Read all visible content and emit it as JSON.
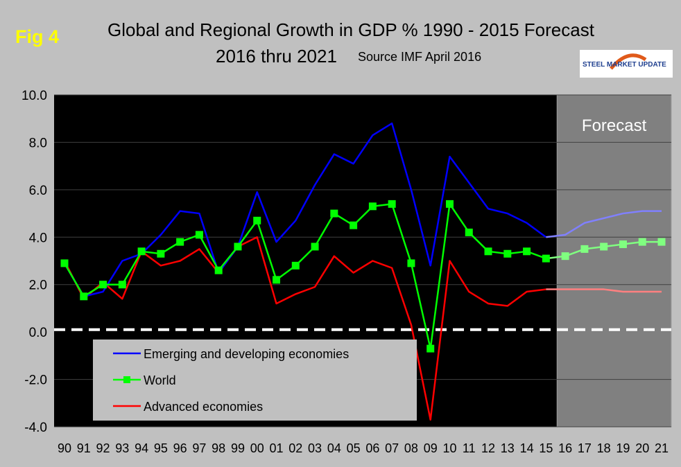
{
  "header": {
    "fig_label": "Fig 4",
    "title_line1": "Global and Regional Growth in GDP % 1990 - 2015 Forecast",
    "title_line2": "2016 thru 2021",
    "source": "Source IMF April 2016",
    "logo_text": "STEEL MARKET UPDATE"
  },
  "colors": {
    "plot_background": "#000000",
    "forecast_background": "#808080",
    "emerging": "#0000ff",
    "emerging_forecast": "#8080ff",
    "world": "#00ff00",
    "world_forecast": "#80ff80",
    "advanced": "#ff0000",
    "advanced_forecast": "#ff8080",
    "zero_line": "#ffffff"
  },
  "chart_data": {
    "type": "line",
    "categories": [
      "90",
      "91",
      "92",
      "93",
      "94",
      "95",
      "96",
      "97",
      "98",
      "99",
      "00",
      "01",
      "02",
      "03",
      "04",
      "05",
      "06",
      "07",
      "08",
      "09",
      "10",
      "11",
      "12",
      "13",
      "14",
      "15",
      "16",
      "17",
      "18",
      "19",
      "20",
      "21"
    ],
    "y_ticks": [
      "10.0",
      "8.0",
      "6.0",
      "4.0",
      "2.0",
      "0.0",
      "-2.0",
      "-4.0"
    ],
    "ylim": [
      -4,
      10
    ],
    "forecast_label": "Forecast",
    "forecast_start_category": "16",
    "legend_position": "bottom-left",
    "series": [
      {
        "name": "Emerging and developing economies",
        "marker": "none",
        "values": [
          2.9,
          1.5,
          1.7,
          3.0,
          3.3,
          4.1,
          5.1,
          5.0,
          2.5,
          3.6,
          5.9,
          3.8,
          4.7,
          6.2,
          7.5,
          7.1,
          8.3,
          8.8,
          6.0,
          2.8,
          7.4,
          6.3,
          5.2,
          5.0,
          4.6,
          4.0,
          4.1,
          4.6,
          4.8,
          5.0,
          5.1,
          5.1
        ]
      },
      {
        "name": "World",
        "marker": "square",
        "values": [
          2.9,
          1.5,
          2.0,
          2.0,
          3.4,
          3.3,
          3.8,
          4.1,
          2.6,
          3.6,
          4.7,
          2.2,
          2.8,
          3.6,
          5.0,
          4.5,
          5.3,
          5.4,
          2.9,
          -0.7,
          5.4,
          4.2,
          3.4,
          3.3,
          3.4,
          3.1,
          3.2,
          3.5,
          3.6,
          3.7,
          3.8,
          3.8
        ]
      },
      {
        "name": "Advanced economies",
        "marker": "none",
        "values": [
          3.0,
          1.4,
          2.1,
          1.4,
          3.4,
          2.8,
          3.0,
          3.5,
          2.5,
          3.6,
          4.0,
          1.2,
          1.6,
          1.9,
          3.2,
          2.5,
          3.0,
          2.7,
          0.3,
          -3.7,
          3.0,
          1.7,
          1.2,
          1.1,
          1.7,
          1.8,
          1.8,
          1.8,
          1.8,
          1.7,
          1.7,
          1.7
        ]
      }
    ]
  }
}
